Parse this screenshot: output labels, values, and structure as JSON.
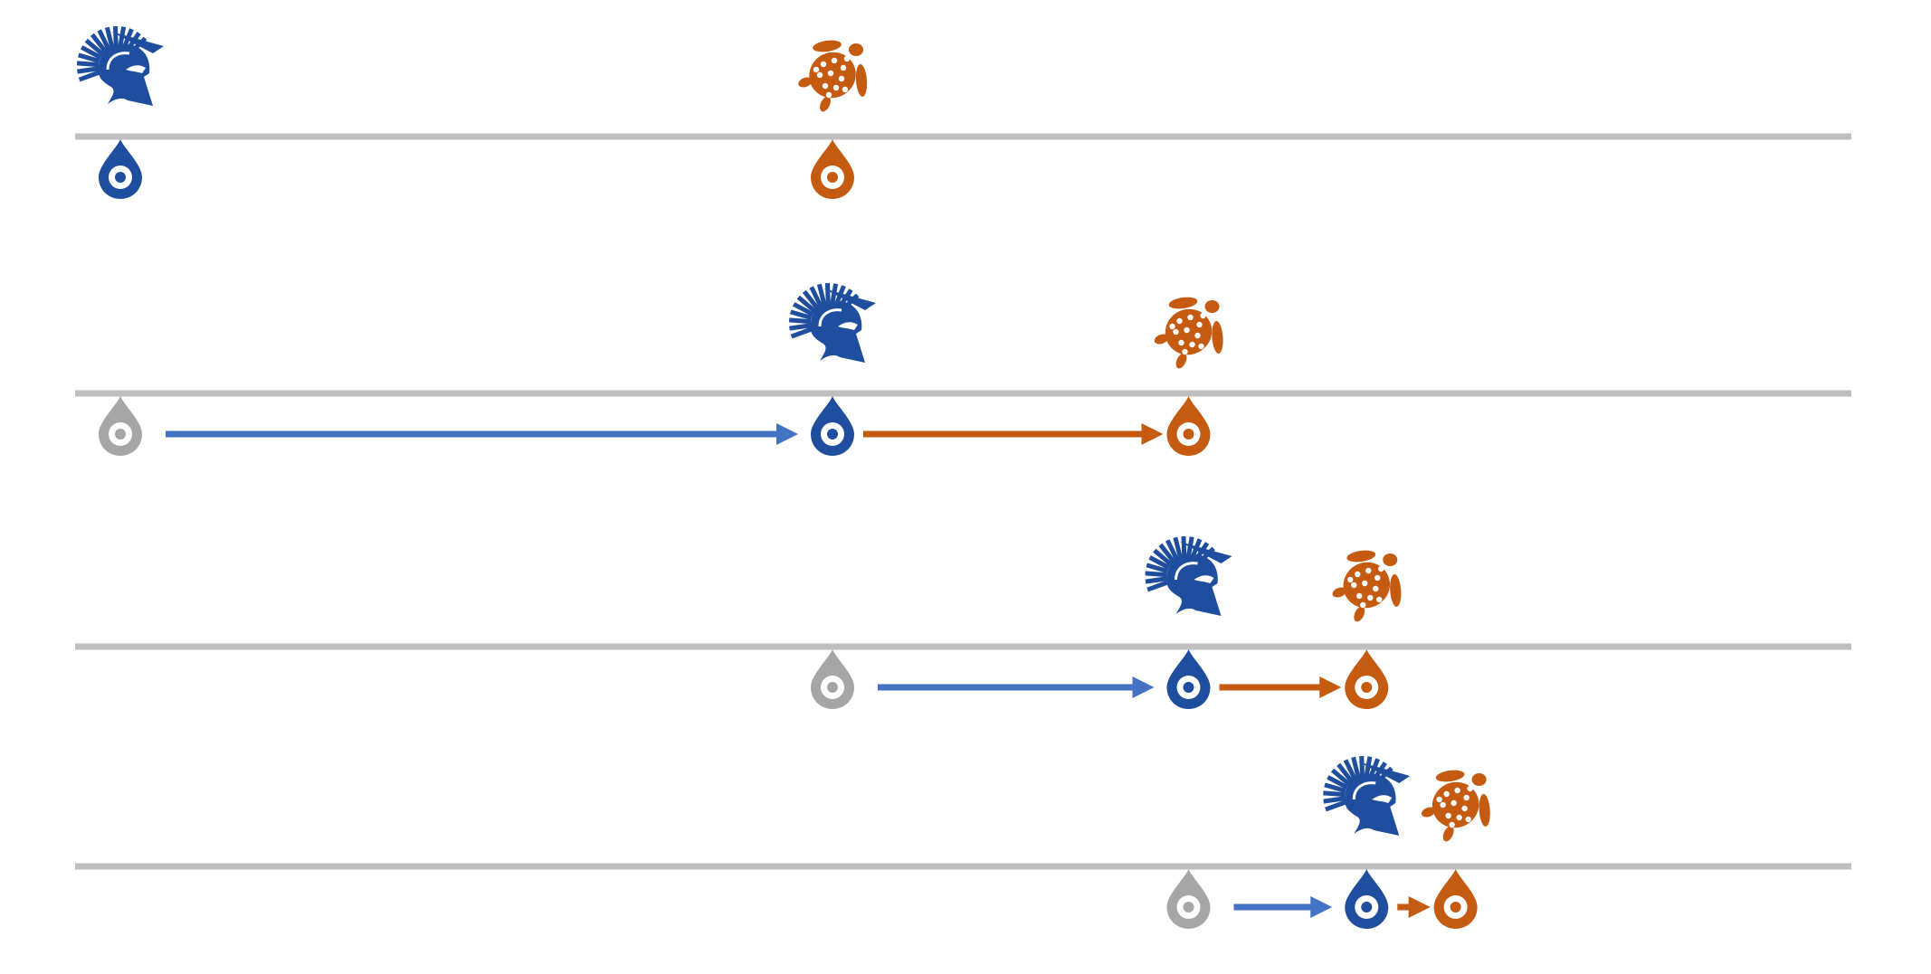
{
  "title": "",
  "colors": {
    "achilles": "#1f4e9e",
    "tortoise": "#c55a11",
    "past_marker": "#a6a6a6",
    "achilles_arrow": "#4472c4",
    "tortoise_arrow": "#c55a11",
    "track": "#bfbfbf"
  },
  "icons": {
    "achilles": "spartan-helmet-icon",
    "tortoise": "turtle-icon",
    "marker": "location-pin-icon"
  },
  "stages": [
    {
      "index": 1,
      "achilles_position": 0,
      "tortoise_position": 1.0,
      "achilles_previous_position": null,
      "shows_move": false
    },
    {
      "index": 2,
      "achilles_position": 1.0,
      "tortoise_position": 1.5,
      "achilles_previous_position": 0,
      "shows_move": true
    },
    {
      "index": 3,
      "achilles_position": 1.5,
      "tortoise_position": 1.75,
      "achilles_previous_position": 1.0,
      "shows_move": true
    },
    {
      "index": 4,
      "achilles_position": 1.75,
      "tortoise_position": 1.875,
      "achilles_previous_position": 1.5,
      "shows_move": true
    }
  ]
}
